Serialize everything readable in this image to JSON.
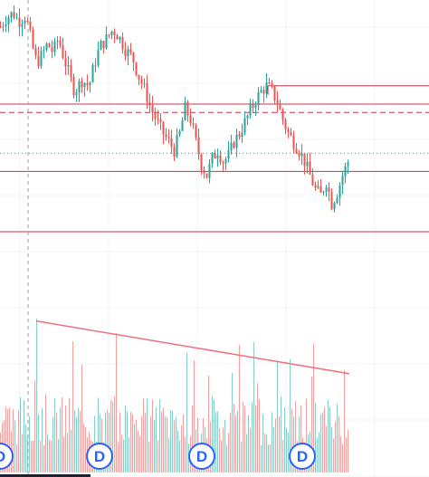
{
  "chart_data": {
    "type": "candlestick",
    "xlabel": "",
    "ylabel": "",
    "grid": true,
    "colors": {
      "up": "#26a69a",
      "down": "#ef5350",
      "level_line": "#c8334a",
      "trend_line": "#f07080",
      "dotted_level": "#26a69a",
      "dashed_level": "#c8334a",
      "crosshair": "#9e9e9e",
      "marker_border": "#2962ff"
    },
    "dividend_markers": [
      {
        "label": "D"
      },
      {
        "label": "D"
      },
      {
        "label": "D"
      },
      {
        "label": "D"
      }
    ],
    "price_path": [
      [
        0,
        0.93
      ],
      [
        6,
        0.96
      ],
      [
        14,
        0.98
      ],
      [
        20,
        0.95
      ],
      [
        28,
        0.97
      ],
      [
        34,
        0.88
      ],
      [
        40,
        0.8
      ],
      [
        46,
        0.83
      ],
      [
        52,
        0.87
      ],
      [
        58,
        0.84
      ],
      [
        64,
        0.89
      ],
      [
        70,
        0.82
      ],
      [
        76,
        0.76
      ],
      [
        82,
        0.7
      ],
      [
        90,
        0.74
      ],
      [
        98,
        0.72
      ],
      [
        104,
        0.8
      ],
      [
        110,
        0.86
      ],
      [
        118,
        0.89
      ],
      [
        124,
        0.92
      ],
      [
        130,
        0.9
      ],
      [
        138,
        0.85
      ],
      [
        146,
        0.82
      ],
      [
        152,
        0.76
      ],
      [
        160,
        0.7
      ],
      [
        166,
        0.64
      ],
      [
        172,
        0.6
      ],
      [
        178,
        0.56
      ],
      [
        186,
        0.52
      ],
      [
        192,
        0.49
      ],
      [
        198,
        0.55
      ],
      [
        204,
        0.64
      ],
      [
        210,
        0.6
      ],
      [
        216,
        0.52
      ],
      [
        222,
        0.44
      ],
      [
        228,
        0.4
      ],
      [
        234,
        0.46
      ],
      [
        240,
        0.49
      ],
      [
        246,
        0.45
      ],
      [
        252,
        0.47
      ],
      [
        258,
        0.52
      ],
      [
        264,
        0.55
      ],
      [
        270,
        0.59
      ],
      [
        276,
        0.63
      ],
      [
        282,
        0.67
      ],
      [
        288,
        0.7
      ],
      [
        294,
        0.72
      ],
      [
        300,
        0.7
      ],
      [
        306,
        0.66
      ],
      [
        312,
        0.6
      ],
      [
        318,
        0.55
      ],
      [
        324,
        0.52
      ],
      [
        330,
        0.49
      ],
      [
        336,
        0.45
      ],
      [
        342,
        0.4
      ],
      [
        348,
        0.35
      ],
      [
        354,
        0.33
      ],
      [
        360,
        0.38
      ],
      [
        366,
        0.3
      ],
      [
        372,
        0.34
      ],
      [
        378,
        0.4
      ],
      [
        384,
        0.45
      ]
    ],
    "horizontal_levels": [
      {
        "price": 0.72,
        "style": "solid",
        "from_x": 296
      },
      {
        "price": 0.655,
        "style": "solid",
        "from_x": 0
      },
      {
        "price": 0.625,
        "style": "dashed",
        "from_x": 0
      },
      {
        "price": 0.48,
        "style": "dotted",
        "from_x": 0
      },
      {
        "price": 0.415,
        "style": "solid",
        "from_x": 0
      },
      {
        "price": 0.2,
        "style": "solid",
        "from_x": 0
      }
    ],
    "trendline": {
      "start": [
        40,
        0.92
      ],
      "end": [
        386,
        0.6
      ]
    }
  }
}
